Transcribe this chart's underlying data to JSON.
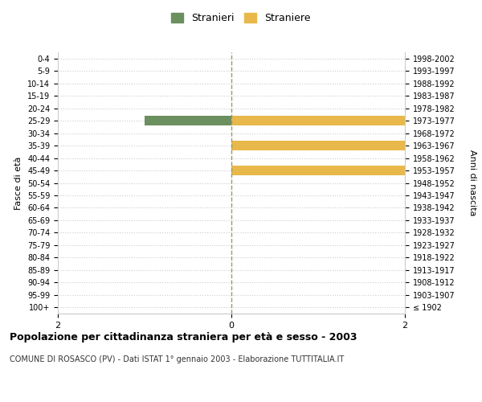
{
  "age_groups": [
    "100+",
    "95-99",
    "90-94",
    "85-89",
    "80-84",
    "75-79",
    "70-74",
    "65-69",
    "60-64",
    "55-59",
    "50-54",
    "45-49",
    "40-44",
    "35-39",
    "30-34",
    "25-29",
    "20-24",
    "15-19",
    "10-14",
    "5-9",
    "0-4"
  ],
  "birth_years": [
    "≤ 1902",
    "1903-1907",
    "1908-1912",
    "1913-1917",
    "1918-1922",
    "1923-1927",
    "1928-1932",
    "1933-1937",
    "1938-1942",
    "1943-1947",
    "1948-1952",
    "1953-1957",
    "1958-1962",
    "1963-1967",
    "1968-1972",
    "1973-1977",
    "1978-1982",
    "1983-1987",
    "1988-1992",
    "1993-1997",
    "1998-2002"
  ],
  "stranieri": [
    0,
    0,
    0,
    0,
    0,
    0,
    0,
    0,
    0,
    0,
    0,
    0,
    0,
    0,
    0,
    1,
    0,
    0,
    0,
    0,
    0
  ],
  "straniere": [
    0,
    0,
    0,
    0,
    0,
    0,
    0,
    0,
    0,
    0,
    0,
    2,
    0,
    2,
    0,
    2,
    0,
    0,
    0,
    0,
    0
  ],
  "color_stranieri": "#6b8f5e",
  "color_straniere": "#e8b84b",
  "xlim": 2,
  "title": "Popolazione per cittadinanza straniera per età e sesso - 2003",
  "subtitle": "COMUNE DI ROSASCO (PV) - Dati ISTAT 1° gennaio 2003 - Elaborazione TUTTITALIA.IT",
  "ylabel_left": "Fasce di età",
  "ylabel_right": "Anni di nascita",
  "legend_stranieri": "Stranieri",
  "legend_straniere": "Straniere",
  "background_color": "#ffffff",
  "grid_color": "#cccccc",
  "bar_height": 0.75
}
